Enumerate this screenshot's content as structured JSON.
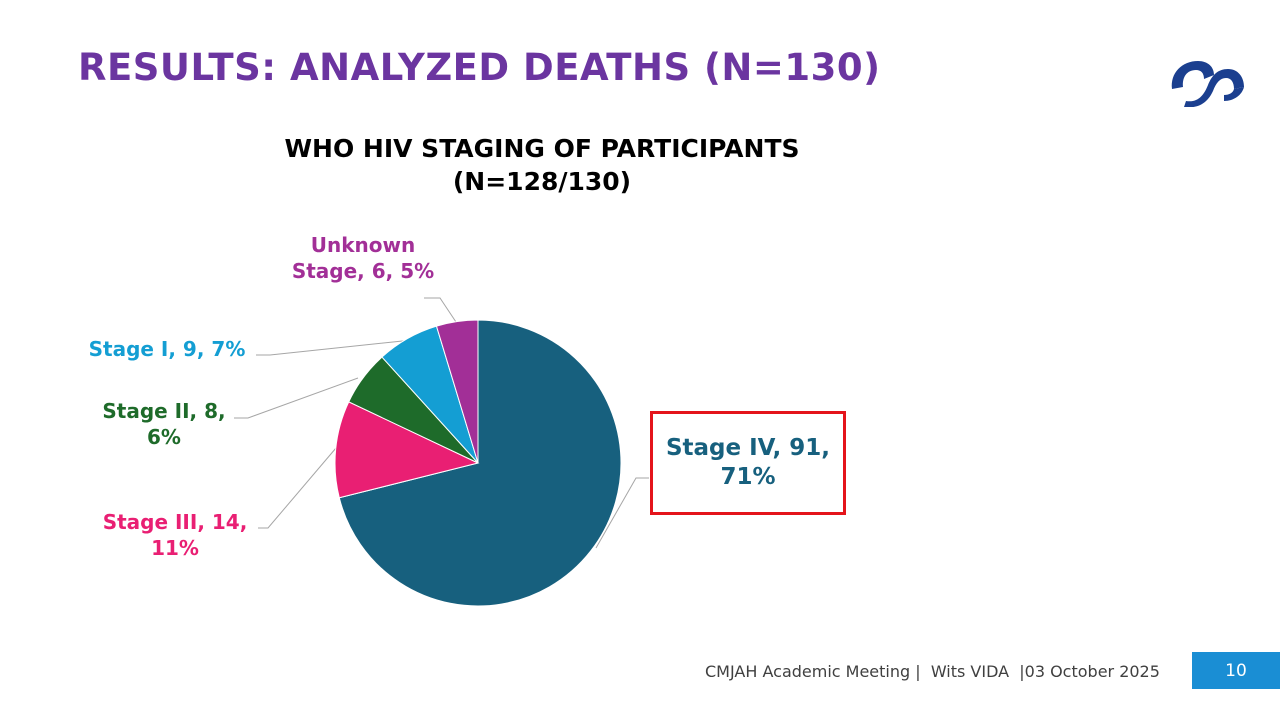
{
  "slide": {
    "title": "RESULTS: ANALYZED DEATHS (N=130)",
    "footer_text": "CMJAH Academic Meeting |  Wits VIDA  |03 October 2025",
    "page_number": "10",
    "logo_icon": "wits-vida-logo-icon"
  },
  "chart_data": {
    "type": "pie",
    "title_line1": "WHO HIV STAGING OF PARTICIPANTS",
    "title_line2": "(N=128/130)",
    "slices": [
      {
        "name": "Stage IV",
        "value": 91,
        "percent": "71%",
        "color": "#17607e",
        "label": "Stage IV, 91, 71%"
      },
      {
        "name": "Stage III",
        "value": 14,
        "percent": "11%",
        "color": "#e91f73",
        "label": "Stage III, 14, 11%"
      },
      {
        "name": "Stage II",
        "value": 8,
        "percent": "6%",
        "color": "#1e6b2a",
        "label": "Stage II, 8, 6%"
      },
      {
        "name": "Stage I",
        "value": 9,
        "percent": "7%",
        "color": "#149ed3",
        "label": "Stage I, 9, 7%"
      },
      {
        "name": "Unknown Stage",
        "value": 6,
        "percent": "5%",
        "color": "#a22f97",
        "label": "Unknown Stage, 6, 5%"
      }
    ],
    "labels": {
      "stage4_l1": "Stage IV, 91,",
      "stage4_l2": "71%",
      "stage3_l1": "Stage III, 14,",
      "stage3_l2": "11%",
      "stage2_l1": "Stage II, 8,",
      "stage2_l2": "6%",
      "stage1": "Stage I, 9, 7%",
      "unknown_l1": "Unknown",
      "unknown_l2": "Stage, 6, 5%"
    },
    "highlight_color": "#e4141b"
  }
}
